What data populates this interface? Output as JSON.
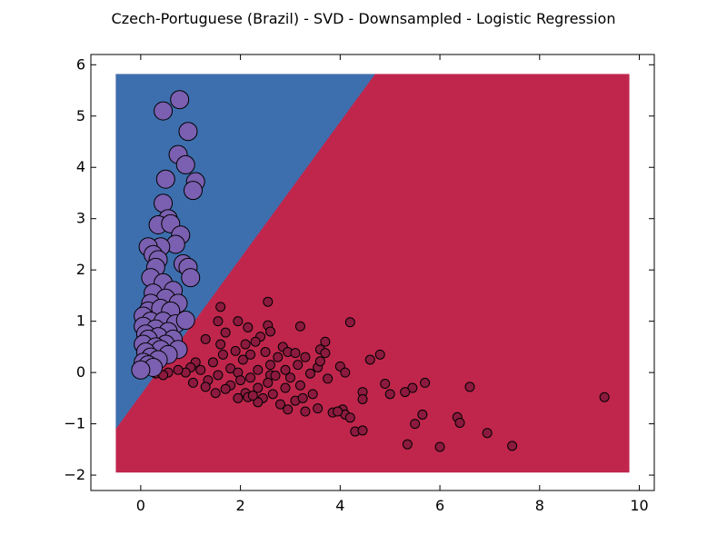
{
  "chart_data": {
    "type": "scatter",
    "title": "Czech-Portuguese (Brazil) - SVD - Downsampled - Logistic Regression",
    "xlabel": "",
    "ylabel": "",
    "xlim": [
      -1,
      10.3
    ],
    "ylim": [
      -2.3,
      6.2
    ],
    "x_ticks": [
      0,
      2,
      4,
      6,
      8,
      10
    ],
    "y_ticks": [
      -2,
      -1,
      0,
      1,
      2,
      3,
      4,
      5,
      6
    ],
    "x_tick_labels": [
      "0",
      "2",
      "4",
      "6",
      "8",
      "10"
    ],
    "y_tick_labels": [
      "−2",
      "−1",
      "0",
      "1",
      "2",
      "3",
      "4",
      "5",
      "6"
    ],
    "grid": false,
    "legend": "none",
    "decision_region": {
      "x_range": [
        -0.5,
        9.8
      ],
      "y_range": [
        -1.95,
        5.82
      ],
      "boundary_points": [
        [
          -0.5,
          -1.1
        ],
        [
          4.7,
          5.82
        ]
      ],
      "colors": {
        "upper_left": "#3d6fae",
        "lower_right": "#c0264c"
      }
    },
    "series": [
      {
        "color": "#7b5fb0",
        "marker_size": "large",
        "points": [
          [
            0.45,
            5.1
          ],
          [
            0.78,
            5.32
          ],
          [
            0.95,
            4.7
          ],
          [
            0.75,
            4.25
          ],
          [
            0.9,
            4.05
          ],
          [
            1.1,
            3.72
          ],
          [
            1.05,
            3.55
          ],
          [
            0.5,
            3.77
          ],
          [
            0.45,
            3.3
          ],
          [
            0.55,
            3.0
          ],
          [
            0.35,
            2.88
          ],
          [
            0.6,
            2.9
          ],
          [
            0.8,
            2.68
          ],
          [
            0.7,
            2.5
          ],
          [
            0.4,
            2.45
          ],
          [
            0.15,
            2.45
          ],
          [
            0.25,
            2.3
          ],
          [
            0.35,
            2.2
          ],
          [
            0.85,
            2.12
          ],
          [
            0.95,
            2.05
          ],
          [
            1.0,
            1.85
          ],
          [
            0.3,
            2.05
          ],
          [
            0.2,
            1.85
          ],
          [
            0.45,
            1.75
          ],
          [
            0.65,
            1.6
          ],
          [
            0.25,
            1.55
          ],
          [
            0.5,
            1.45
          ],
          [
            0.75,
            1.35
          ],
          [
            0.2,
            1.35
          ],
          [
            0.15,
            1.2
          ],
          [
            0.4,
            1.25
          ],
          [
            0.6,
            1.2
          ],
          [
            0.05,
            1.1
          ],
          [
            0.2,
            1.0
          ],
          [
            0.45,
            1.0
          ],
          [
            0.7,
            0.95
          ],
          [
            0.9,
            1.02
          ],
          [
            0.05,
            0.9
          ],
          [
            0.3,
            0.85
          ],
          [
            0.55,
            0.8
          ],
          [
            0.1,
            0.75
          ],
          [
            0.35,
            0.7
          ],
          [
            0.65,
            0.65
          ],
          [
            0.15,
            0.65
          ],
          [
            0.5,
            0.55
          ],
          [
            0.05,
            0.55
          ],
          [
            0.3,
            0.5
          ],
          [
            0.75,
            0.45
          ],
          [
            0.4,
            0.45
          ],
          [
            0.1,
            0.4
          ],
          [
            0.55,
            0.35
          ],
          [
            0.2,
            0.3
          ],
          [
            0.35,
            0.25
          ],
          [
            0.05,
            0.2
          ],
          [
            0.15,
            0.15
          ],
          [
            0.25,
            0.1
          ],
          [
            0.0,
            0.05
          ]
        ]
      },
      {
        "color": "#8b1a3e",
        "marker_size": "small",
        "points": [
          [
            2.55,
            1.38
          ],
          [
            1.6,
            1.28
          ],
          [
            4.2,
            0.98
          ],
          [
            1.55,
            1.0
          ],
          [
            1.95,
            1.0
          ],
          [
            2.55,
            0.92
          ],
          [
            3.2,
            0.9
          ],
          [
            2.15,
            0.88
          ],
          [
            2.6,
            0.8
          ],
          [
            1.7,
            0.78
          ],
          [
            2.4,
            0.7
          ],
          [
            1.3,
            0.65
          ],
          [
            2.3,
            0.6
          ],
          [
            3.7,
            0.6
          ],
          [
            2.1,
            0.55
          ],
          [
            1.6,
            0.55
          ],
          [
            2.85,
            0.5
          ],
          [
            3.6,
            0.45
          ],
          [
            1.9,
            0.42
          ],
          [
            2.5,
            0.4
          ],
          [
            2.95,
            0.4
          ],
          [
            3.1,
            0.38
          ],
          [
            3.7,
            0.38
          ],
          [
            2.2,
            0.35
          ],
          [
            1.65,
            0.35
          ],
          [
            2.75,
            0.3
          ],
          [
            3.3,
            0.3
          ],
          [
            4.8,
            0.35
          ],
          [
            4.6,
            0.25
          ],
          [
            2.05,
            0.25
          ],
          [
            1.45,
            0.2
          ],
          [
            2.6,
            0.15
          ],
          [
            3.15,
            0.15
          ],
          [
            4.0,
            0.12
          ],
          [
            3.55,
            0.1
          ],
          [
            1.8,
            0.08
          ],
          [
            2.35,
            0.05
          ],
          [
            2.9,
            0.05
          ],
          [
            1.2,
            0.05
          ],
          [
            1.95,
            0.0
          ],
          [
            3.4,
            -0.02
          ],
          [
            4.1,
            0.0
          ],
          [
            2.6,
            -0.05
          ],
          [
            1.55,
            -0.05
          ],
          [
            2.2,
            -0.1
          ],
          [
            3.0,
            -0.1
          ],
          [
            3.75,
            -0.12
          ],
          [
            2.0,
            -0.15
          ],
          [
            1.35,
            -0.15
          ],
          [
            2.55,
            -0.2
          ],
          [
            4.9,
            -0.22
          ],
          [
            5.7,
            -0.2
          ],
          [
            5.45,
            -0.3
          ],
          [
            3.2,
            -0.25
          ],
          [
            6.6,
            -0.28
          ],
          [
            1.8,
            -0.25
          ],
          [
            2.35,
            -0.3
          ],
          [
            2.9,
            -0.3
          ],
          [
            5.3,
            -0.38
          ],
          [
            5.0,
            -0.42
          ],
          [
            4.45,
            -0.38
          ],
          [
            2.1,
            -0.4
          ],
          [
            2.65,
            -0.42
          ],
          [
            3.45,
            -0.42
          ],
          [
            1.5,
            -0.4
          ],
          [
            2.45,
            -0.5
          ],
          [
            1.95,
            -0.5
          ],
          [
            4.45,
            -0.52
          ],
          [
            3.1,
            -0.55
          ],
          [
            2.35,
            -0.58
          ],
          [
            2.8,
            -0.62
          ],
          [
            3.55,
            -0.7
          ],
          [
            3.85,
            -0.78
          ],
          [
            4.05,
            -0.72
          ],
          [
            4.1,
            -0.82
          ],
          [
            2.95,
            -0.72
          ],
          [
            3.3,
            -0.76
          ],
          [
            2.15,
            -0.48
          ],
          [
            3.95,
            -0.76
          ],
          [
            5.65,
            -0.82
          ],
          [
            4.2,
            -0.88
          ],
          [
            6.35,
            -0.87
          ],
          [
            5.5,
            -1.0
          ],
          [
            6.4,
            -0.98
          ],
          [
            4.3,
            -1.15
          ],
          [
            4.45,
            -1.13
          ],
          [
            6.95,
            -1.18
          ],
          [
            5.35,
            -1.4
          ],
          [
            6.0,
            -1.45
          ],
          [
            7.45,
            -1.43
          ],
          [
            9.3,
            -0.48
          ],
          [
            2.7,
            -0.06
          ],
          [
            3.6,
            0.22
          ],
          [
            1.1,
            0.2
          ],
          [
            1.0,
            0.1
          ],
          [
            0.9,
            0.0
          ],
          [
            0.55,
            0.0
          ],
          [
            0.75,
            0.05
          ],
          [
            0.3,
            -0.02
          ],
          [
            0.45,
            -0.05
          ],
          [
            1.05,
            -0.2
          ],
          [
            1.3,
            -0.28
          ],
          [
            1.7,
            -0.32
          ],
          [
            2.25,
            -0.45
          ],
          [
            3.25,
            -0.5
          ]
        ]
      }
    ]
  }
}
